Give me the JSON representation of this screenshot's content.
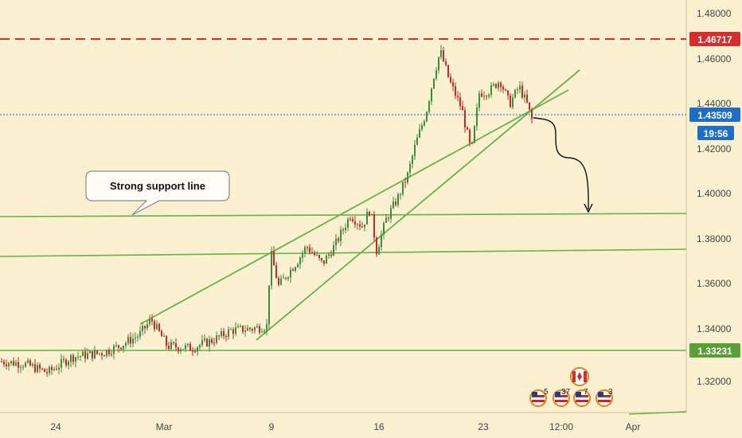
{
  "chart_data": {
    "type": "candlestick",
    "y_axis": {
      "ticks": [
        "1.48000",
        "1.46000",
        "1.44000",
        "1.42000",
        "1.40000",
        "1.38000",
        "1.36000",
        "1.34000",
        "1.32000"
      ],
      "range": [
        1.303,
        1.489
      ]
    },
    "x_axis": {
      "ticks": [
        "24",
        "Mar",
        "9",
        "16",
        "23",
        "12:00",
        "Apr"
      ]
    },
    "price_tags": {
      "resistance": {
        "value": "1.46717",
        "color": "#d32f2f"
      },
      "current": {
        "value": "1.43509",
        "color": "#1e6ec8"
      },
      "countdown": {
        "value": "19:56",
        "color": "#1e6ec8"
      },
      "support": {
        "value": "1.33231",
        "color": "#5a9e3a"
      }
    },
    "levels": {
      "resistance": 1.46717,
      "current": 1.43509,
      "support": 1.33231
    },
    "annotation": {
      "text": "Strong support line"
    },
    "events": {
      "badges": [
        "5",
        "37",
        "7",
        "3"
      ]
    },
    "colors": {
      "bull": "#3d8b3d",
      "bear": "#c62828",
      "trendline": "#6ab04c",
      "background": "#fbf0cf"
    }
  }
}
